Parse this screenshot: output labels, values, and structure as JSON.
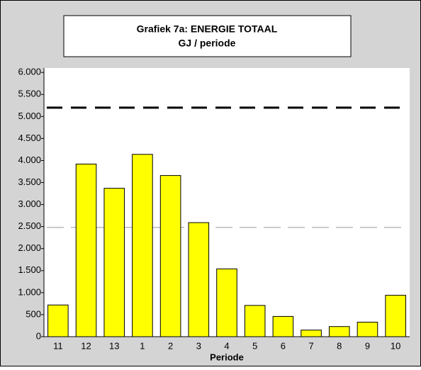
{
  "chart_data": {
    "type": "bar",
    "title": "Grafiek 7a: ENERGIE TOTAAL",
    "subtitle": "GJ / periode",
    "x_label": "Periode",
    "categories": [
      "11",
      "12",
      "13",
      "1",
      "2",
      "3",
      "4",
      "5",
      "6",
      "7",
      "8",
      "9",
      "10"
    ],
    "values": [
      720,
      3920,
      3370,
      4140,
      3660,
      2590,
      1540,
      710,
      460,
      150,
      230,
      330,
      940
    ],
    "color": "#ffff00",
    "ylim": [
      0,
      6100
    ],
    "yticks": [
      0,
      {
        "value": 500,
        "label": "500"
      },
      {
        "value": 1000,
        "label": "1.000"
      },
      {
        "value": 1500,
        "label": "1.500"
      },
      {
        "value": 2000,
        "label": "2.000"
      },
      {
        "value": 2500,
        "label": "2.500"
      },
      {
        "value": 3000,
        "label": "3.000"
      },
      {
        "value": 3500,
        "label": "3.500"
      },
      {
        "value": 4000,
        "label": "4.000"
      },
      {
        "value": 4500,
        "label": "4.500"
      },
      {
        "value": 5000,
        "label": "5.000"
      },
      {
        "value": 5500,
        "label": "5.500"
      },
      {
        "value": 6000,
        "label": "6.000"
      }
    ],
    "reference_lines": [
      {
        "value": 5200,
        "color": "#000000"
      },
      {
        "value": 2480,
        "color": "#999999"
      }
    ],
    "grid": false
  }
}
